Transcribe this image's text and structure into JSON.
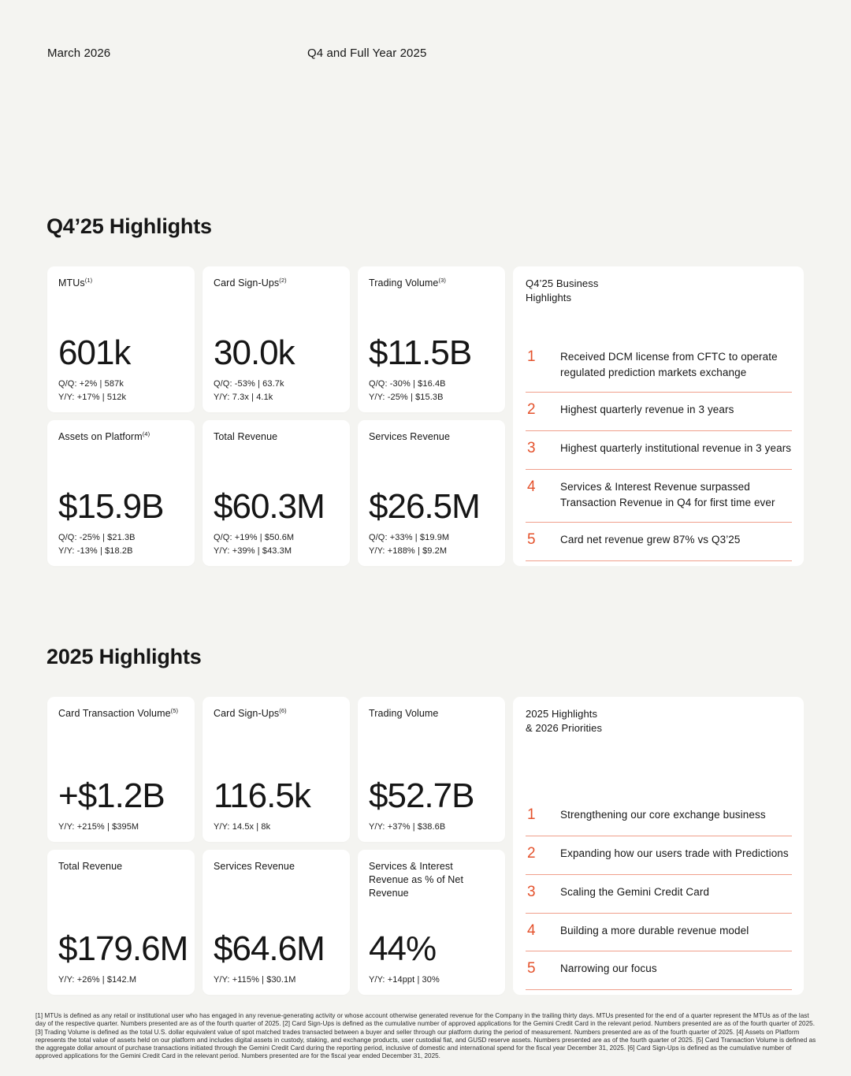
{
  "colors": {
    "background": "#F4F4F1",
    "card": "#FFFFFF",
    "accent_orange": "#E4512B",
    "divider_orange": "#EC8663",
    "text": "#161616"
  },
  "header": {
    "date": "March 2026",
    "title": "Q4 and Full Year 2025"
  },
  "sections": [
    {
      "title": "Q4’25 Highlights",
      "cards": [
        {
          "label": "MTUs",
          "sup": "(1)",
          "value": "601k",
          "stats": [
            "Q/Q: +2% | 587k",
            "Y/Y:  +17% | 512k"
          ]
        },
        {
          "label": "Card Sign-Ups",
          "sup": "(2)",
          "value": "30.0k",
          "stats": [
            "Q/Q: -53% | 63.7k",
            "Y/Y:  7.3x | 4.1k"
          ]
        },
        {
          "label": "Trading Volume",
          "sup": "(3)",
          "value": "$11.5B",
          "stats": [
            "Q/Q: -30% | $16.4B",
            "Y/Y:  -25% | $15.3B"
          ]
        },
        {
          "label": "Assets on Platform",
          "sup": "(4)",
          "value": "$15.9B",
          "stats": [
            "Q/Q: -25% | $21.3B",
            "Y/Y:  -13% | $18.2B"
          ]
        },
        {
          "label": "Total Revenue",
          "sup": "",
          "value": "$60.3M",
          "stats": [
            "Q/Q: +19% | $50.6M",
            "Y/Y:  +39% | $43.3M"
          ]
        },
        {
          "label": "Services Revenue",
          "sup": "",
          "value": "$26.5M",
          "stats": [
            "Q/Q: +33% | $19.9M",
            "Y/Y:  +188% | $9.2M"
          ]
        }
      ],
      "panel": {
        "title_lines": [
          "Q4’25 Business",
          "Highlights"
        ],
        "items": [
          {
            "num": "1",
            "text": "Received DCM license from CFTC to operate regulated prediction markets exchange"
          },
          {
            "num": "2",
            "text": "Highest quarterly revenue in 3 years"
          },
          {
            "num": "3",
            "text": "Highest quarterly institutional revenue in 3 years"
          },
          {
            "num": "4",
            "text": "Services & Interest Revenue surpassed Transaction Revenue in Q4 for first time ever"
          },
          {
            "num": "5",
            "text": "Card net revenue grew 87% vs Q3’25"
          }
        ]
      }
    },
    {
      "title": "2025 Highlights",
      "cards": [
        {
          "label": "Card Transaction Volume",
          "sup": "(5)",
          "value": "+$1.2B",
          "stats": [
            "Y/Y:  +215% | $395M"
          ]
        },
        {
          "label": "Card Sign-Ups",
          "sup": "(6)",
          "value": "116.5k",
          "stats": [
            "Y/Y:  14.5x | 8k"
          ]
        },
        {
          "label": "Trading Volume",
          "sup": "",
          "value": "$52.7B",
          "stats": [
            "Y/Y:  +37% | $38.6B"
          ]
        },
        {
          "label": "Total Revenue",
          "sup": "",
          "value": "$179.6M",
          "stats": [
            "Y/Y:  +26% | $142.M"
          ]
        },
        {
          "label": "Services Revenue",
          "sup": "",
          "value": "$64.6M",
          "stats": [
            "Y/Y:  +115% | $30.1M"
          ]
        },
        {
          "label": "Services & Interest Revenue as % of Net Revenue",
          "sup": "",
          "value": "44%",
          "stats": [
            "Y/Y:  +14ppt | 30%"
          ]
        }
      ],
      "panel": {
        "title_lines": [
          "2025 Highlights",
          "& 2026 Priorities"
        ],
        "items": [
          {
            "num": "1",
            "text": "Strengthening our core exchange business"
          },
          {
            "num": "2",
            "text": "Expanding how our users trade with Predictions"
          },
          {
            "num": "3",
            "text": "Scaling the Gemini Credit Card"
          },
          {
            "num": "4",
            "text": "Building a more durable revenue model"
          },
          {
            "num": "5",
            "text": "Narrowing our focus"
          }
        ]
      }
    }
  ],
  "footnote": "[1] MTUs is defined as any retail or institutional user who has engaged in any revenue-generating activity or whose account otherwise generated revenue for the Company in the trailing thirty days. MTUs presented for the end of a quarter represent the MTUs as of the last day of the respective quarter. Numbers presented are as of the fourth quarter of 2025. [2] Card Sign-Ups is defined as the cumulative number of approved applications for the Gemini Credit Card in the relevant period. Numbers presented are as of the fourth quarter of 2025. [3] Trading Volume is defined as the total U.S. dollar equivalent value of spot matched trades transacted between a buyer and seller through our platform during the period of measurement. Numbers presented are as of the fourth quarter of 2025. [4] Assets on Platform represents the total value of assets held on our platform and includes digital assets in custody, staking, and exchange products, user custodial fiat, and GUSD reserve assets. Numbers presented are as of the fourth quarter of 2025. [5]  Card Transaction Volume is defined as the aggregate dollar amount of purchase transactions initiated through the Gemini Credit Card during the reporting period, inclusive of domestic and international spend for the fiscal year December 31, 2025. [6] Card Sign-Ups is defined as the cumulative number of approved applications for the Gemini Credit Card in the relevant period. Numbers presented are for the fiscal year ended December 31, 2025."
}
